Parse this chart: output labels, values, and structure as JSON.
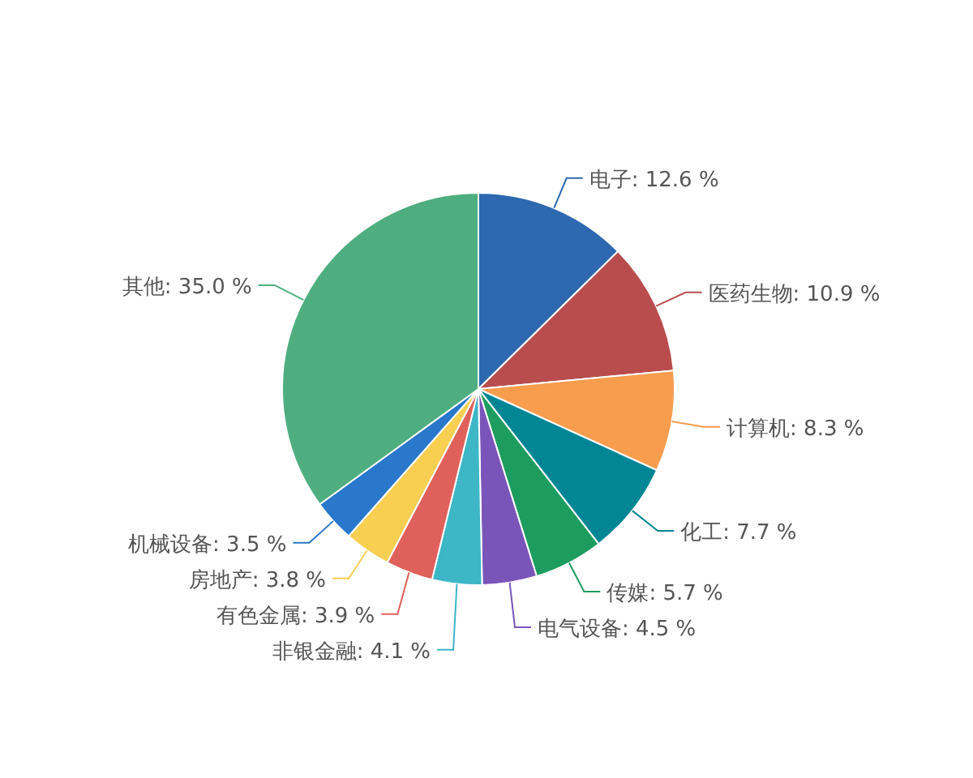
{
  "chart_data": {
    "type": "pie",
    "value_labels": [
      ": 12.6 %",
      ": 10.9 %",
      ": 8.3 %",
      ": 7.7 %",
      ": 5.7 %",
      ": 4.5 %",
      ": 4.1 %",
      ": 3.9 %",
      ": 3.8 %",
      ": 3.5 %",
      ": 35.0 %"
    ],
    "categories": [
      "电子",
      "医药生物",
      "计算机",
      "化工",
      "传媒",
      "电气设备",
      "非银金融",
      "有色金属",
      "房地产",
      "机械设备",
      "其他"
    ],
    "values": [
      12.6,
      10.9,
      8.3,
      7.7,
      5.7,
      4.5,
      4.1,
      3.9,
      3.8,
      3.5,
      35.0
    ],
    "colors": [
      "#2e68b0",
      "#b94d4e",
      "#f89c4e",
      "#028696",
      "#1d9c5f",
      "#7a55b9",
      "#3db6c6",
      "#e0605b",
      "#f9cf52",
      "#2978cc",
      "#4fae7f"
    ]
  }
}
